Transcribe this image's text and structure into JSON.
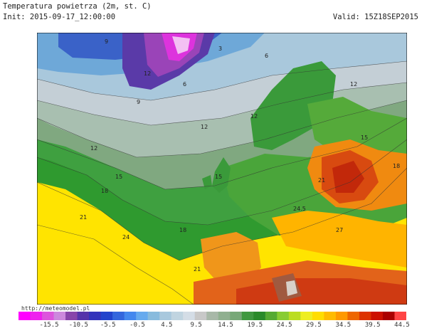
{
  "header": {
    "title": "Temperatura powietrza (2m, st. C)",
    "init": "Init: 2015-09-17_12:00:00",
    "valid": "Valid: 15Z18SEP2015"
  },
  "source": "http://meteomodel.pl",
  "map": {
    "contour_labels": [
      "3",
      "6",
      "9",
      "12",
      "12",
      "15",
      "18",
      "21",
      "24",
      "15",
      "18",
      "21",
      "9",
      "12",
      "6",
      "12",
      "12",
      "15",
      "18",
      "21",
      "24.5",
      "27"
    ]
  },
  "legend": {
    "ticks": [
      "-15.5",
      "-10.5",
      "-5.5",
      "-0.5",
      "4.5",
      "9.5",
      "14.5",
      "19.5",
      "24.5",
      "29.5",
      "34.5",
      "39.5",
      "44.5"
    ],
    "colors": [
      "#ff00ff",
      "#ee22ee",
      "#dd55dd",
      "#cc88dd",
      "#8844aa",
      "#5533aa",
      "#3333bb",
      "#2244cc",
      "#3366dd",
      "#4488ee",
      "#66aaee",
      "#88bbdd",
      "#a8c8dd",
      "#c0d4e0",
      "#d4dde6",
      "#c8c8c8",
      "#a8b8a8",
      "#90b090",
      "#78a878",
      "#409840",
      "#2a8a2a",
      "#55aa33",
      "#88cc33",
      "#bbdd22",
      "#eeee22",
      "#ffdd00",
      "#ffbb00",
      "#ff9900",
      "#ee6600",
      "#dd3300",
      "#cc1100",
      "#aa0000",
      "#ff4444"
    ]
  }
}
